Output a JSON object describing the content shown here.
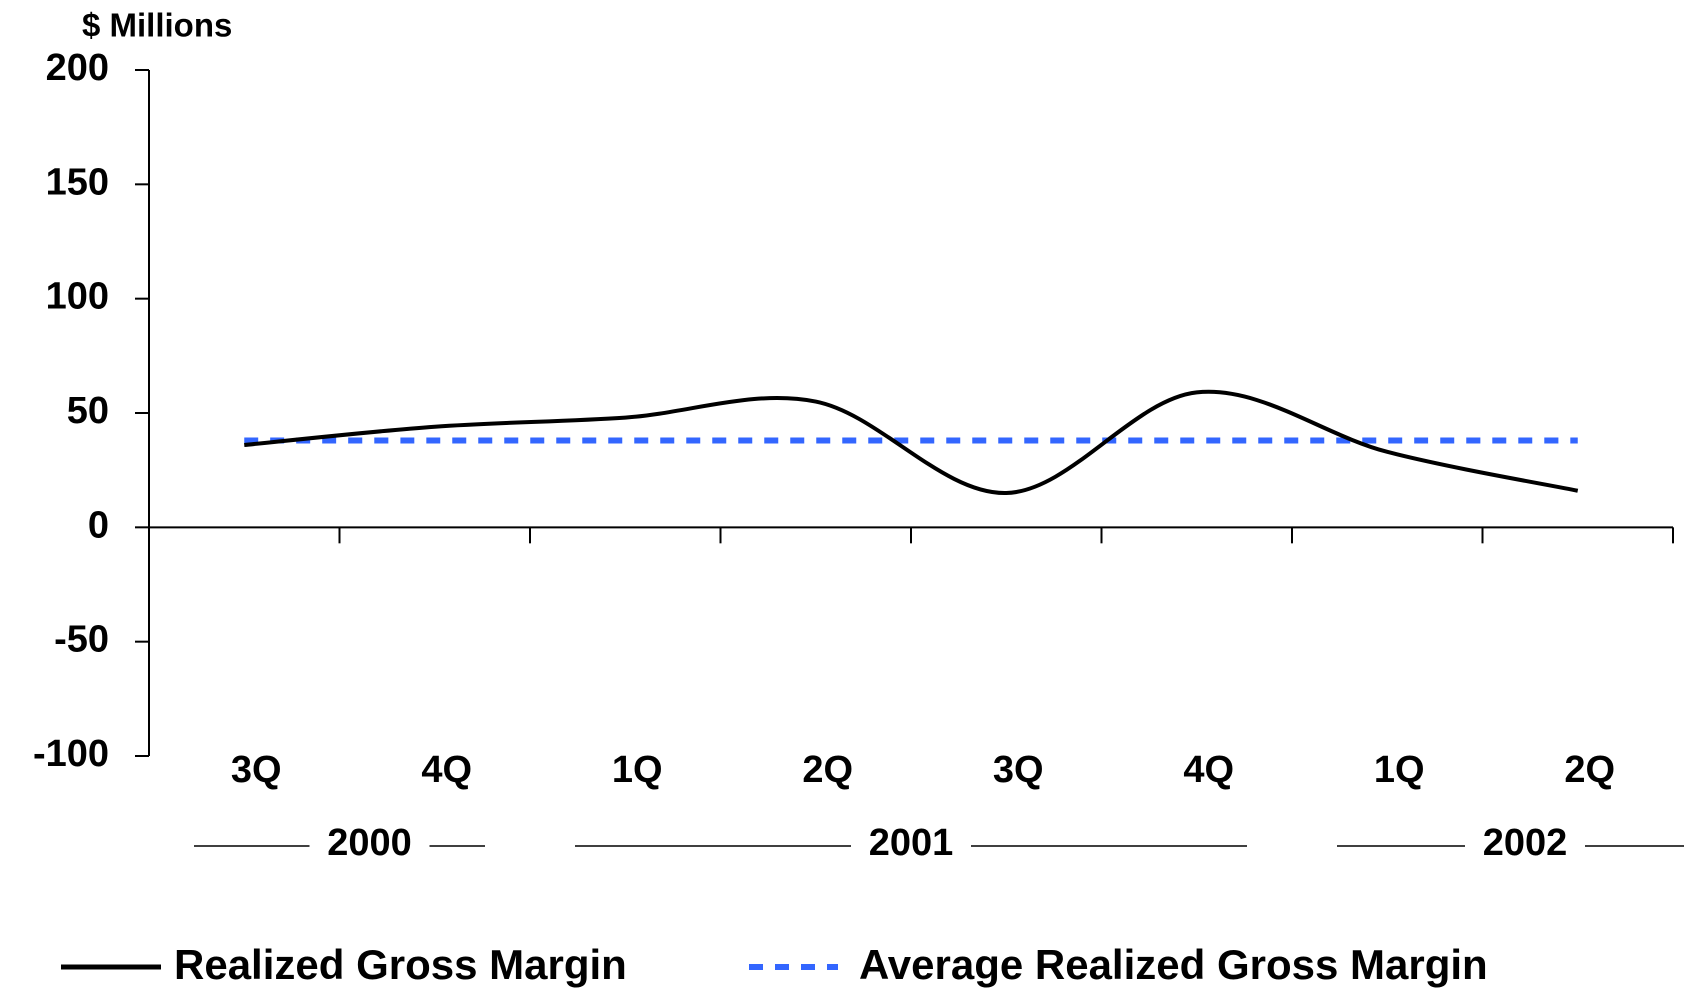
{
  "chart_data": {
    "type": "line",
    "y_axis_label": "$ Millions",
    "categories": [
      "3Q",
      "4Q",
      "1Q",
      "2Q",
      "3Q",
      "4Q",
      "1Q",
      "2Q"
    ],
    "year_labels": [
      "2000",
      "2001",
      "2002"
    ],
    "series": [
      {
        "name": "Realized Gross Margin",
        "color": "#000000",
        "values": [
          36,
          44,
          48,
          55,
          15,
          59,
          33,
          16
        ]
      },
      {
        "name": "Average Realized Gross Margin",
        "color": "#3366ff",
        "values": [
          38,
          38,
          38,
          38,
          38,
          38,
          38,
          38
        ]
      }
    ],
    "ylim": [
      -100,
      200
    ],
    "yticks": [
      -100,
      -50,
      0,
      50,
      100,
      150,
      200
    ],
    "grid": false
  }
}
